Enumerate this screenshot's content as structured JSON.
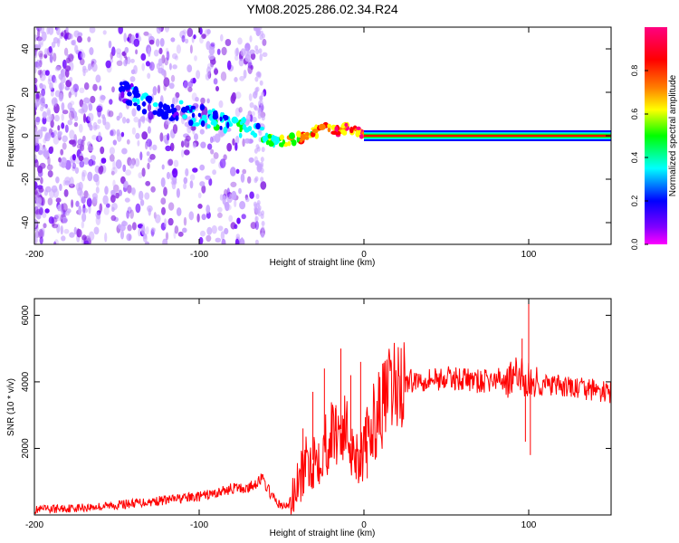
{
  "title": "YM08.2025.286.02.34.R24",
  "chart_data": [
    {
      "type": "heatmap",
      "xlabel": "Height of straight line (km)",
      "ylabel": "Frequency (Hz)",
      "xlim": [
        -200,
        150
      ],
      "ylim": [
        -50,
        50
      ],
      "x_ticks": [
        -200,
        -100,
        0,
        100
      ],
      "y_ticks": [
        -40,
        -20,
        0,
        20,
        40
      ],
      "colorbar": {
        "label": "Normalized spectral amplitude",
        "range": [
          0.0,
          1.0
        ],
        "ticks": [
          "0.0",
          "0.2",
          "0.4",
          "0.6",
          "0.8"
        ],
        "colormap": [
          "#ff00ff",
          "#8000ff",
          "#0000ff",
          "#00ffff",
          "#00ff00",
          "#ffff00",
          "#ff8000",
          "#ff0000",
          "#ff0080"
        ]
      },
      "ridge": {
        "x": [
          -145,
          -135,
          -125,
          -115,
          -105,
          -95,
          -85,
          -75,
          -65,
          -58,
          -52,
          -46,
          -40,
          -34,
          -28,
          -22,
          -16,
          -10,
          -5,
          0,
          150
        ],
        "y": [
          20,
          16,
          13,
          12,
          10,
          8,
          6,
          4,
          1,
          -2,
          -3,
          -2,
          -1,
          0,
          2,
          4,
          2,
          4,
          3,
          1,
          0
        ],
        "amplitude": [
          0.25,
          0.35,
          0.3,
          0.3,
          0.35,
          0.4,
          0.45,
          0.45,
          0.4,
          0.55,
          0.6,
          0.75,
          0.8,
          0.8,
          0.85,
          0.9,
          0.95,
          0.95,
          0.95,
          1.0,
          1.0
        ]
      },
      "grid": false
    },
    {
      "type": "line",
      "xlabel": "Height of straight line (km)",
      "ylabel": "SNR (10 * v/v)",
      "xlim": [
        -200,
        150
      ],
      "ylim": [
        0,
        6500
      ],
      "x_ticks": [
        -200,
        -100,
        0,
        100
      ],
      "y_ticks": [
        2000,
        4000,
        6000
      ],
      "color": "#ff0000",
      "series": [
        {
          "x": [
            -200,
            -180,
            -160,
            -140,
            -120,
            -100,
            -90,
            -80,
            -70,
            -62,
            -55,
            -50,
            -45,
            -40,
            -35,
            -30,
            -25,
            -20,
            -15,
            -10,
            -5,
            0,
            5,
            10,
            15,
            20,
            30,
            40,
            50,
            60,
            70,
            80,
            90,
            95,
            100,
            105,
            110,
            120,
            130,
            140,
            150
          ],
          "values": [
            150,
            200,
            250,
            350,
            450,
            550,
            650,
            800,
            800,
            1100,
            500,
            250,
            300,
            900,
            1500,
            1700,
            2000,
            2400,
            2600,
            2500,
            1800,
            1900,
            2700,
            3200,
            3600,
            3900,
            4050,
            4100,
            4100,
            4100,
            4000,
            4050,
            4100,
            4200,
            4000,
            3950,
            3900,
            3850,
            3800,
            3750,
            3650
          ],
          "spikes": [
            {
              "x": -37,
              "y": 2600
            },
            {
              "x": -31,
              "y": 3700
            },
            {
              "x": -24,
              "y": 4400
            },
            {
              "x": -17,
              "y": 3300
            },
            {
              "x": -14,
              "y": 5000
            },
            {
              "x": -8,
              "y": 4200
            },
            {
              "x": -2,
              "y": 4600
            },
            {
              "x": 2,
              "y": 1100
            },
            {
              "x": 96,
              "y": 5300
            },
            {
              "x": 98,
              "y": 2200
            },
            {
              "x": 100,
              "y": 6500
            },
            {
              "x": 101,
              "y": 1800
            }
          ]
        }
      ],
      "grid": false
    }
  ]
}
